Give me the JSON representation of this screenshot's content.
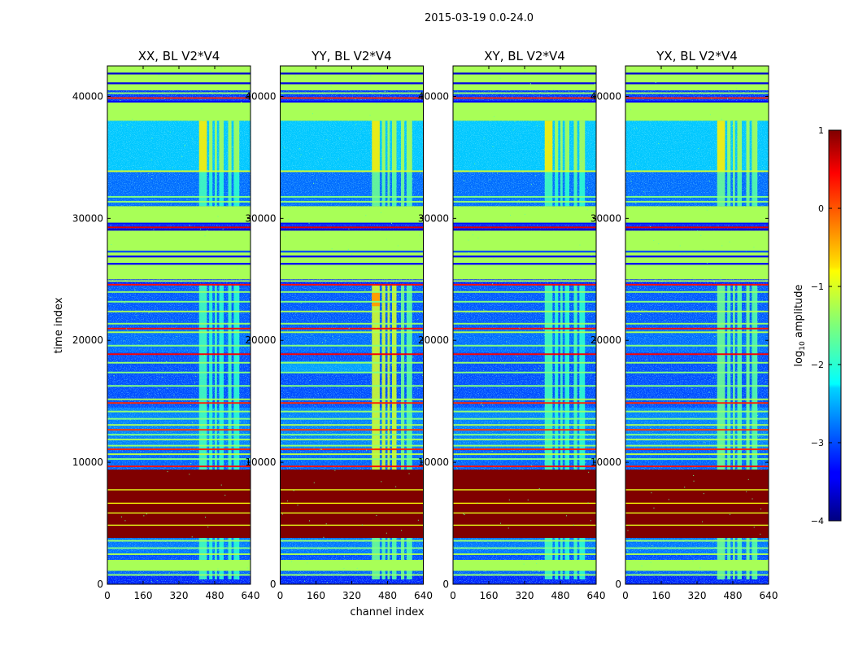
{
  "figure": {
    "suptitle": "2015-03-19 0.0-24.0",
    "xlabel": "channel index",
    "ylabel": "time index"
  },
  "chart_data": {
    "type": "heatmap",
    "title": "2015-03-19 0.0-24.0",
    "xlabel": "channel index",
    "ylabel": "time index",
    "xlim": [
      0,
      640
    ],
    "ylim": [
      0,
      42500
    ],
    "xticks": [
      0,
      160,
      320,
      480,
      640
    ],
    "yticks": [
      0,
      10000,
      20000,
      30000,
      40000
    ],
    "panels": [
      {
        "title": "XX, BL V2*V4",
        "polarization": "XX",
        "rfi_level": -1.8,
        "rfi_strong": false,
        "dim_block": false
      },
      {
        "title": "YY, BL V2*V4",
        "polarization": "YY",
        "rfi_level": -1.6,
        "rfi_strong": true,
        "dim_block": true
      },
      {
        "title": "XY, BL V2*V4",
        "polarization": "XY",
        "rfi_level": -1.8,
        "rfi_strong": false,
        "dim_block": false
      },
      {
        "title": "YX, BL V2*V4",
        "polarization": "YX",
        "rfi_level": -1.6,
        "rfi_strong": false,
        "dim_block": false
      }
    ],
    "background_log_amplitude": -3.2,
    "rfi_channels": [
      [
        410,
        445
      ],
      [
        455,
        470
      ],
      [
        480,
        490
      ],
      [
        500,
        520
      ],
      [
        540,
        555
      ],
      [
        565,
        590
      ]
    ],
    "saturated_block": {
      "t_start": 3800,
      "t_end": 9400,
      "log_amplitude": 1.0
    },
    "flagged_blocks": [
      {
        "t_start": 1100,
        "t_end": 2000,
        "log_amplitude": -1.3
      },
      {
        "t_start": 25000,
        "t_end": 29000,
        "log_amplitude": -1.3
      },
      {
        "t_start": 29500,
        "t_end": 31000,
        "log_amplitude": -1.3
      },
      {
        "t_start": 38000,
        "t_end": 39500,
        "log_amplitude": -1.3
      },
      {
        "t_start": 40500,
        "t_end": 42500,
        "log_amplitude": -1.3
      }
    ],
    "colorbar": {
      "label": "log10 amplitude",
      "label_main": "log",
      "label_sub": "10",
      "label_rest": " amplitude",
      "range": [
        -4,
        1
      ],
      "ticks": [
        1,
        0,
        -1,
        -2,
        -3,
        -4
      ],
      "tick_labels": [
        "1",
        "0",
        "−1",
        "−2",
        "−3",
        "−4"
      ],
      "colormap": "jet"
    }
  }
}
